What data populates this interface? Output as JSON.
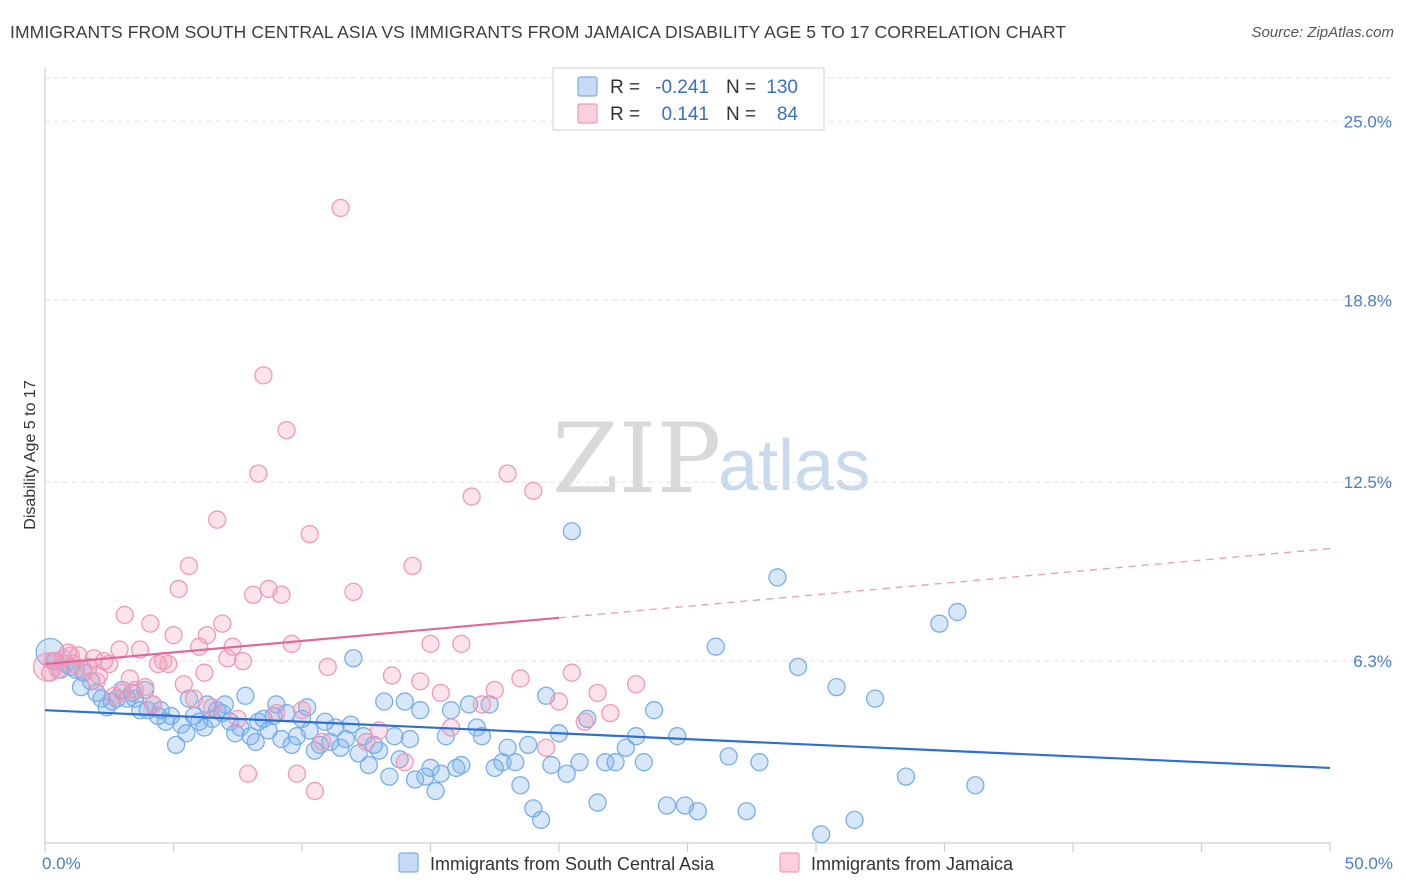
{
  "header": {
    "title": "IMMIGRANTS FROM SOUTH CENTRAL ASIA VS IMMIGRANTS FROM JAMAICA DISABILITY AGE 5 TO 17 CORRELATION CHART",
    "source": "Source: ZipAtlas.com"
  },
  "watermark": {
    "zip": "ZIP",
    "atlas": "atlas"
  },
  "legend": {
    "rows": [
      {
        "r_label": "R =",
        "r_value": "-0.241",
        "n_label": "N =",
        "n_value": "130",
        "color": "#7aaee8"
      },
      {
        "r_label": "R =",
        "r_value": "0.141",
        "n_label": "N =",
        "n_value": "84",
        "color": "#f09ab8"
      }
    ]
  },
  "bottom_legend": [
    {
      "label": "Immigrants from South Central Asia",
      "color": "#7aaee8"
    },
    {
      "label": "Immigrants from Jamaica",
      "color": "#f09ab8"
    }
  ],
  "chart_data": {
    "type": "scatter",
    "title": "IMMIGRANTS FROM SOUTH CENTRAL ASIA VS IMMIGRANTS FROM JAMAICA DISABILITY AGE 5 TO 17 CORRELATION CHART",
    "xlabel": "",
    "ylabel": "Disability Age 5 to 17",
    "xlim": [
      0,
      50
    ],
    "ylim": [
      0,
      26.5
    ],
    "x_tick_labels": [
      "0.0%",
      "50.0%"
    ],
    "y_ticks": [
      6.3,
      12.5,
      18.8,
      25.0
    ],
    "y_tick_labels": [
      "6.3%",
      "12.5%",
      "18.8%",
      "25.0%"
    ],
    "grid": "horizontal dashed",
    "legend_position": "top-center",
    "series": [
      {
        "name": "Immigrants from South Central Asia",
        "color": "#7aaee8",
        "trend": {
          "x": [
            0,
            50
          ],
          "y": [
            4.6,
            2.6
          ],
          "style": "solid"
        },
        "points": [
          [
            0.2,
            6.6
          ],
          [
            0.4,
            6.3
          ],
          [
            0.6,
            6.0
          ],
          [
            0.8,
            6.2
          ],
          [
            1.0,
            6.1
          ],
          [
            1.2,
            6.0
          ],
          [
            1.4,
            5.4
          ],
          [
            1.5,
            5.9
          ],
          [
            1.8,
            5.6
          ],
          [
            2.0,
            5.2
          ],
          [
            2.2,
            5.0
          ],
          [
            2.4,
            4.7
          ],
          [
            2.6,
            4.9
          ],
          [
            2.8,
            5.0
          ],
          [
            3.0,
            5.3
          ],
          [
            3.2,
            5.0
          ],
          [
            3.4,
            5.2
          ],
          [
            3.5,
            5.0
          ],
          [
            3.7,
            4.6
          ],
          [
            3.9,
            5.3
          ],
          [
            4.0,
            4.6
          ],
          [
            4.2,
            4.8
          ],
          [
            4.4,
            4.4
          ],
          [
            4.5,
            4.6
          ],
          [
            4.7,
            4.2
          ],
          [
            4.9,
            4.4
          ],
          [
            5.1,
            3.4
          ],
          [
            5.3,
            4.1
          ],
          [
            5.5,
            3.8
          ],
          [
            5.6,
            5.0
          ],
          [
            5.8,
            4.4
          ],
          [
            6.0,
            4.2
          ],
          [
            6.2,
            4.0
          ],
          [
            6.3,
            4.8
          ],
          [
            6.5,
            4.3
          ],
          [
            6.7,
            4.6
          ],
          [
            6.9,
            4.5
          ],
          [
            7.0,
            4.8
          ],
          [
            7.2,
            4.2
          ],
          [
            7.4,
            3.8
          ],
          [
            7.6,
            4.0
          ],
          [
            7.8,
            5.1
          ],
          [
            8.0,
            3.7
          ],
          [
            8.2,
            3.5
          ],
          [
            8.3,
            4.2
          ],
          [
            8.5,
            4.3
          ],
          [
            8.7,
            3.9
          ],
          [
            8.9,
            4.4
          ],
          [
            9.0,
            4.8
          ],
          [
            9.2,
            3.6
          ],
          [
            9.4,
            4.5
          ],
          [
            9.6,
            3.4
          ],
          [
            9.8,
            3.7
          ],
          [
            10.0,
            4.3
          ],
          [
            10.2,
            4.7
          ],
          [
            10.3,
            3.9
          ],
          [
            10.5,
            3.2
          ],
          [
            10.7,
            3.4
          ],
          [
            10.9,
            4.2
          ],
          [
            11.1,
            3.5
          ],
          [
            11.3,
            4.0
          ],
          [
            11.5,
            3.3
          ],
          [
            11.7,
            3.6
          ],
          [
            11.9,
            4.1
          ],
          [
            12.0,
            6.4
          ],
          [
            12.2,
            3.1
          ],
          [
            12.4,
            3.7
          ],
          [
            12.6,
            2.7
          ],
          [
            12.8,
            3.4
          ],
          [
            13.0,
            3.2
          ],
          [
            13.2,
            4.9
          ],
          [
            13.4,
            2.3
          ],
          [
            13.6,
            3.7
          ],
          [
            13.8,
            2.9
          ],
          [
            14.0,
            4.9
          ],
          [
            14.2,
            3.6
          ],
          [
            14.4,
            2.2
          ],
          [
            14.6,
            4.6
          ],
          [
            14.8,
            2.3
          ],
          [
            15.0,
            2.6
          ],
          [
            15.2,
            1.8
          ],
          [
            15.4,
            2.4
          ],
          [
            15.6,
            3.7
          ],
          [
            15.8,
            4.6
          ],
          [
            16.0,
            2.6
          ],
          [
            16.2,
            2.7
          ],
          [
            16.5,
            4.8
          ],
          [
            16.8,
            4.0
          ],
          [
            17.0,
            3.7
          ],
          [
            17.3,
            4.8
          ],
          [
            17.5,
            2.6
          ],
          [
            17.8,
            2.8
          ],
          [
            18.0,
            3.3
          ],
          [
            18.3,
            2.8
          ],
          [
            18.5,
            2.0
          ],
          [
            18.8,
            3.4
          ],
          [
            19.0,
            1.2
          ],
          [
            19.3,
            0.8
          ],
          [
            19.5,
            5.1
          ],
          [
            19.7,
            2.7
          ],
          [
            20.0,
            3.8
          ],
          [
            20.3,
            2.4
          ],
          [
            20.5,
            10.8
          ],
          [
            20.8,
            2.8
          ],
          [
            21.1,
            4.3
          ],
          [
            21.5,
            1.4
          ],
          [
            21.8,
            2.8
          ],
          [
            22.2,
            2.8
          ],
          [
            22.6,
            3.3
          ],
          [
            23.0,
            3.7
          ],
          [
            23.3,
            2.8
          ],
          [
            23.7,
            4.6
          ],
          [
            24.2,
            1.3
          ],
          [
            24.6,
            3.7
          ],
          [
            24.9,
            1.3
          ],
          [
            25.4,
            1.1
          ],
          [
            26.1,
            6.8
          ],
          [
            26.6,
            3.0
          ],
          [
            27.3,
            1.1
          ],
          [
            27.8,
            2.8
          ],
          [
            28.5,
            9.2
          ],
          [
            29.3,
            6.1
          ],
          [
            30.2,
            0.3
          ],
          [
            30.8,
            5.4
          ],
          [
            31.5,
            0.8
          ],
          [
            32.3,
            5.0
          ],
          [
            33.5,
            2.3
          ],
          [
            34.8,
            7.6
          ],
          [
            35.5,
            8.0
          ],
          [
            36.2,
            2.0
          ]
        ]
      },
      {
        "name": "Immigrants from Jamaica",
        "color": "#f09ab8",
        "trend": {
          "x": [
            0,
            20
          ],
          "y": [
            6.2,
            7.8
          ],
          "style": "solid",
          "extension": {
            "x": [
              20,
              50
            ],
            "y": [
              7.8,
              10.2
            ],
            "style": "dashed"
          }
        },
        "points": [
          [
            0.1,
            6.1
          ],
          [
            0.3,
            6.3
          ],
          [
            0.5,
            6.0
          ],
          [
            0.7,
            6.4
          ],
          [
            0.9,
            6.6
          ],
          [
            1.1,
            6.2
          ],
          [
            1.3,
            6.5
          ],
          [
            1.5,
            6.0
          ],
          [
            1.7,
            6.1
          ],
          [
            1.9,
            6.4
          ],
          [
            2.1,
            5.8
          ],
          [
            2.3,
            6.3
          ],
          [
            2.5,
            6.2
          ],
          [
            2.7,
            5.1
          ],
          [
            2.9,
            6.7
          ],
          [
            3.1,
            7.9
          ],
          [
            3.3,
            5.7
          ],
          [
            3.5,
            5.3
          ],
          [
            3.7,
            6.7
          ],
          [
            3.9,
            5.4
          ],
          [
            4.1,
            7.6
          ],
          [
            4.2,
            4.8
          ],
          [
            4.4,
            6.2
          ],
          [
            4.6,
            6.3
          ],
          [
            4.8,
            6.2
          ],
          [
            5.0,
            7.2
          ],
          [
            5.2,
            8.8
          ],
          [
            5.4,
            5.5
          ],
          [
            5.6,
            9.6
          ],
          [
            5.8,
            5.0
          ],
          [
            6.0,
            6.8
          ],
          [
            6.2,
            5.9
          ],
          [
            6.3,
            7.2
          ],
          [
            6.5,
            4.7
          ],
          [
            6.7,
            11.2
          ],
          [
            6.9,
            7.6
          ],
          [
            7.1,
            6.4
          ],
          [
            7.3,
            6.8
          ],
          [
            7.5,
            4.3
          ],
          [
            7.7,
            6.3
          ],
          [
            7.9,
            2.4
          ],
          [
            8.1,
            8.6
          ],
          [
            8.3,
            12.8
          ],
          [
            8.5,
            16.2
          ],
          [
            8.7,
            8.8
          ],
          [
            9.0,
            4.5
          ],
          [
            9.2,
            8.6
          ],
          [
            9.4,
            14.3
          ],
          [
            9.6,
            6.9
          ],
          [
            9.8,
            2.4
          ],
          [
            10.0,
            4.6
          ],
          [
            10.3,
            10.7
          ],
          [
            10.5,
            1.8
          ],
          [
            10.8,
            3.5
          ],
          [
            11.0,
            6.1
          ],
          [
            11.5,
            22.0
          ],
          [
            12.0,
            8.7
          ],
          [
            12.5,
            3.5
          ],
          [
            13.0,
            3.9
          ],
          [
            13.5,
            5.8
          ],
          [
            14.0,
            2.8
          ],
          [
            14.3,
            9.6
          ],
          [
            14.6,
            5.6
          ],
          [
            15.0,
            6.9
          ],
          [
            15.4,
            5.2
          ],
          [
            15.8,
            4.0
          ],
          [
            16.2,
            6.9
          ],
          [
            16.6,
            12.0
          ],
          [
            17.0,
            4.8
          ],
          [
            17.5,
            5.3
          ],
          [
            18.0,
            12.8
          ],
          [
            18.5,
            5.7
          ],
          [
            19.0,
            12.2
          ],
          [
            19.5,
            3.3
          ],
          [
            20.0,
            4.9
          ],
          [
            20.5,
            5.9
          ],
          [
            21.0,
            4.2
          ],
          [
            21.5,
            5.2
          ],
          [
            22.0,
            4.5
          ],
          [
            23.0,
            5.5
          ],
          [
            0.2,
            5.9
          ],
          [
            1.0,
            6.5
          ],
          [
            2.0,
            5.6
          ],
          [
            3.0,
            5.2
          ]
        ]
      }
    ]
  }
}
